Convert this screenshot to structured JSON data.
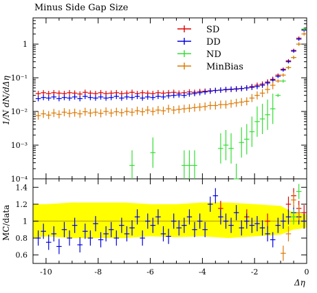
{
  "chart_data": {
    "type": "scatter",
    "title": "Minus Side Gap Size",
    "ylabel": "1/N dN/dΔη",
    "ratio_ylabel": "MC/data",
    "xlabel": "Δη",
    "x_range": [
      -10.5,
      0
    ],
    "y_log": true,
    "y_range": [
      0.0001,
      6
    ],
    "x_ticks": [
      "-10",
      "-8",
      "-6",
      "-4",
      "-2",
      "0"
    ],
    "y_ticks": [
      "1",
      "10⁻¹",
      "10⁻²",
      "10⁻³",
      "10⁻⁴"
    ],
    "ratio_range": [
      0.5,
      1.5
    ],
    "ratio_ticks": [
      "1.4",
      "1.2",
      "1",
      "0.8",
      "0.6"
    ],
    "legend_position": "top-right",
    "series": [
      {
        "name": "SD",
        "color": "#dd0000",
        "x": [
          -10.3,
          -10.1,
          -9.9,
          -9.7,
          -9.5,
          -9.3,
          -9.1,
          -8.9,
          -8.7,
          -8.5,
          -8.3,
          -8.1,
          -7.9,
          -7.7,
          -7.5,
          -7.3,
          -7.1,
          -6.9,
          -6.7,
          -6.5,
          -6.3,
          -6.1,
          -5.9,
          -5.7,
          -5.5,
          -5.3,
          -5.1,
          -4.9,
          -4.7,
          -4.5,
          -4.3,
          -4.1,
          -3.9,
          -3.7,
          -3.5,
          -3.3,
          -3.1,
          -2.9,
          -2.7,
          -2.5,
          -2.3,
          -2.1,
          -1.9,
          -1.7,
          -1.5,
          -1.3,
          -1.1,
          -0.9,
          -0.7,
          -0.5,
          -0.3,
          -0.1
        ],
        "y": [
          0.034,
          0.036,
          0.034,
          0.036,
          0.035,
          0.034,
          0.036,
          0.035,
          0.033,
          0.037,
          0.035,
          0.034,
          0.036,
          0.034,
          0.035,
          0.036,
          0.034,
          0.035,
          0.037,
          0.034,
          0.036,
          0.035,
          0.034,
          0.036,
          0.035,
          0.036,
          0.037,
          0.035,
          0.036,
          0.038,
          0.037,
          0.039,
          0.04,
          0.041,
          0.042,
          0.043,
          0.044,
          0.045,
          0.046,
          0.048,
          0.05,
          0.055,
          0.06,
          0.065,
          0.075,
          0.09,
          0.12,
          0.18,
          0.32,
          0.65,
          1.5,
          2.7
        ]
      },
      {
        "name": "DD",
        "color": "#0000dd",
        "x": [
          -10.3,
          -10.1,
          -9.9,
          -9.7,
          -9.5,
          -9.3,
          -9.1,
          -8.9,
          -8.7,
          -8.5,
          -8.3,
          -8.1,
          -7.9,
          -7.7,
          -7.5,
          -7.3,
          -7.1,
          -6.9,
          -6.7,
          -6.5,
          -6.3,
          -6.1,
          -5.9,
          -5.7,
          -5.5,
          -5.3,
          -5.1,
          -4.9,
          -4.7,
          -4.5,
          -4.3,
          -4.1,
          -3.9,
          -3.7,
          -3.5,
          -3.3,
          -3.1,
          -2.9,
          -2.7,
          -2.5,
          -2.3,
          -2.1,
          -1.9,
          -1.7,
          -1.5,
          -1.3,
          -1.1,
          -0.9,
          -0.7,
          -0.5,
          -0.3,
          -0.1
        ],
        "y": [
          0.024,
          0.026,
          0.025,
          0.027,
          0.024,
          0.026,
          0.025,
          0.027,
          0.024,
          0.028,
          0.026,
          0.025,
          0.027,
          0.025,
          0.026,
          0.028,
          0.025,
          0.027,
          0.026,
          0.028,
          0.025,
          0.027,
          0.026,
          0.028,
          0.027,
          0.029,
          0.03,
          0.031,
          0.03,
          0.033,
          0.034,
          0.036,
          0.038,
          0.04,
          0.042,
          0.043,
          0.045,
          0.046,
          0.047,
          0.048,
          0.05,
          0.052,
          0.055,
          0.06,
          0.07,
          0.085,
          0.11,
          0.17,
          0.3,
          0.62,
          1.4,
          2.6
        ]
      },
      {
        "name": "ND",
        "color": "#33dd33",
        "x": [
          -6.7,
          -5.9,
          -4.7,
          -4.5,
          -4.3,
          -3.3,
          -3.1,
          -2.9,
          -2.7,
          -2.5,
          -2.3,
          -2.1,
          -1.9,
          -1.7,
          -1.5,
          -1.3,
          -1.1,
          -0.9,
          -0.7,
          -0.5,
          -0.3,
          -0.1
        ],
        "y": [
          0.00025,
          0.0006,
          0.00025,
          0.00025,
          0.00025,
          0.0008,
          0.001,
          0.0008,
          0.0001,
          0.0012,
          0.0015,
          0.0025,
          0.005,
          0.006,
          0.008,
          0.012,
          0.03,
          0.08,
          0.2,
          0.4,
          1.0,
          2.8
        ]
      },
      {
        "name": "MinBias",
        "color": "#dd7700",
        "x": [
          -10.3,
          -10.1,
          -9.9,
          -9.7,
          -9.5,
          -9.3,
          -9.1,
          -8.9,
          -8.7,
          -8.5,
          -8.3,
          -8.1,
          -7.9,
          -7.7,
          -7.5,
          -7.3,
          -7.1,
          -6.9,
          -6.7,
          -6.5,
          -6.3,
          -6.1,
          -5.9,
          -5.7,
          -5.5,
          -5.3,
          -5.1,
          -4.9,
          -4.7,
          -4.5,
          -4.3,
          -4.1,
          -3.9,
          -3.7,
          -3.5,
          -3.3,
          -3.1,
          -2.9,
          -2.7,
          -2.5,
          -2.3,
          -2.1,
          -1.9,
          -1.7,
          -1.5,
          -1.3,
          -1.1,
          -0.9,
          -0.7,
          -0.5,
          -0.3,
          -0.1
        ],
        "y": [
          0.0075,
          0.0085,
          0.0078,
          0.009,
          0.0082,
          0.0095,
          0.0088,
          0.0092,
          0.0085,
          0.0098,
          0.009,
          0.0095,
          0.0088,
          0.01,
          0.009,
          0.0098,
          0.0092,
          0.01,
          0.0095,
          0.0105,
          0.0098,
          0.011,
          0.01,
          0.011,
          0.0105,
          0.012,
          0.011,
          0.0115,
          0.012,
          0.0125,
          0.013,
          0.0135,
          0.014,
          0.015,
          0.015,
          0.016,
          0.016,
          0.017,
          0.018,
          0.019,
          0.02,
          0.025,
          0.03,
          0.035,
          0.045,
          0.06,
          0.08,
          0.12,
          0.2,
          0.4,
          1.0,
          2.0
        ]
      }
    ],
    "ratio_series": [
      {
        "name": "SD",
        "color": "#dd0000",
        "x": [
          -3.3,
          -2.3,
          -1.5,
          -0.7,
          -0.5,
          -0.3,
          -0.1
        ],
        "y": [
          1.15,
          1.05,
          1.0,
          1.2,
          1.3,
          1.15,
          1.1
        ]
      },
      {
        "name": "DD",
        "color": "#0000dd",
        "x": [
          -10.3,
          -10.1,
          -9.9,
          -9.7,
          -9.5,
          -9.3,
          -9.1,
          -8.9,
          -8.7,
          -8.5,
          -8.3,
          -8.1,
          -7.9,
          -7.7,
          -7.5,
          -7.3,
          -7.1,
          -6.9,
          -6.7,
          -6.5,
          -6.3,
          -6.1,
          -5.9,
          -5.7,
          -5.5,
          -5.3,
          -5.1,
          -4.9,
          -4.7,
          -4.5,
          -4.3,
          -4.1,
          -3.9,
          -3.7,
          -3.5,
          -3.3,
          -3.1,
          -2.9,
          -2.7,
          -2.5,
          -2.3,
          -2.1,
          -1.9,
          -1.7,
          -1.5,
          -1.3,
          -1.1,
          -0.9,
          -0.7,
          -0.5,
          -0.3,
          -0.1
        ],
        "y": [
          0.8,
          0.88,
          0.75,
          0.85,
          0.7,
          0.9,
          0.8,
          0.95,
          0.72,
          0.88,
          0.8,
          0.97,
          0.78,
          0.85,
          0.9,
          0.8,
          0.95,
          0.85,
          0.92,
          1.05,
          0.8,
          1.0,
          0.95,
          1.05,
          0.85,
          0.82,
          1.0,
          0.92,
          0.95,
          1.05,
          0.9,
          1.0,
          0.9,
          1.2,
          1.3,
          1.05,
          1.0,
          0.95,
          1.1,
          0.92,
          1.0,
          0.95,
          0.97,
          0.92,
          0.85,
          0.78,
          0.95,
          1.0,
          1.05,
          1.1,
          1.05,
          1.0
        ]
      },
      {
        "name": "ND",
        "color": "#33dd33",
        "x": [
          -0.5,
          -0.3
        ],
        "y": [
          1.05,
          1.35
        ]
      },
      {
        "name": "MinBias",
        "color": "#dd7700",
        "x": [
          -0.9,
          -0.7,
          -0.5,
          -0.3
        ],
        "y": [
          0.62,
          0.85,
          1.25,
          1.1
        ]
      }
    ],
    "data_band": {
      "color": "#ffff00",
      "x": [
        -10.5,
        -10,
        -9,
        -8,
        -7,
        -6,
        -5,
        -4,
        -3,
        -2,
        -1,
        -0.5,
        0
      ],
      "low": [
        0.8,
        0.82,
        0.8,
        0.8,
        0.8,
        0.82,
        0.81,
        0.82,
        0.8,
        0.82,
        0.84,
        0.9,
        0.92
      ],
      "high": [
        1.2,
        1.2,
        1.22,
        1.22,
        1.22,
        1.2,
        1.2,
        1.22,
        1.22,
        1.2,
        1.18,
        1.1,
        1.08
      ]
    }
  }
}
